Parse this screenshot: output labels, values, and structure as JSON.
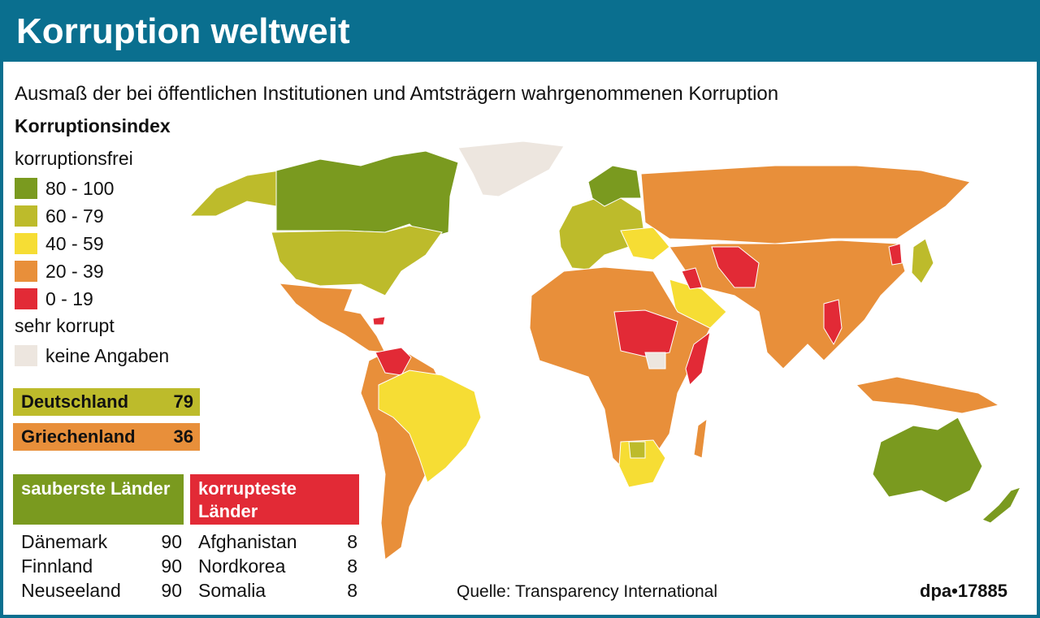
{
  "header": {
    "title": "Korruption weltweit",
    "subtitle": "Ausmaß der bei öffentlichen Institutionen und Amtsträgern wahrgenommenen Korruption",
    "index_label": "Korruptionsindex"
  },
  "legend": {
    "top_label": "korruptionsfrei",
    "items": [
      {
        "label": "80 - 100",
        "color": "#7a9a1f"
      },
      {
        "label": "60 - 79",
        "color": "#bdbb2b"
      },
      {
        "label": "40 - 59",
        "color": "#f6dd34"
      },
      {
        "label": "20 - 39",
        "color": "#e88f3a"
      },
      {
        "label": "0 - 19",
        "color": "#e22a36"
      }
    ],
    "bottom_label": "sehr korrupt",
    "no_data": {
      "label": "keine Angaben",
      "color": "#ede6df"
    }
  },
  "highlights": [
    {
      "country": "Deutschland",
      "value": 79,
      "color": "#bdbb2b"
    },
    {
      "country": "Griechenland",
      "value": 36,
      "color": "#e88f3a"
    }
  ],
  "cleanest": {
    "title": "sauberste Länder",
    "color": "#7a9a1f",
    "rows": [
      {
        "country": "Dänemark",
        "value": 90
      },
      {
        "country": "Finnland",
        "value": 90
      },
      {
        "country": "Neuseeland",
        "value": 90
      }
    ]
  },
  "most_corrupt": {
    "title": "korrupteste Länder",
    "color": "#e22a36",
    "rows": [
      {
        "country": "Afghanistan",
        "value": 8
      },
      {
        "country": "Nordkorea",
        "value": 8
      },
      {
        "country": "Somalia",
        "value": 8
      }
    ]
  },
  "source": "Quelle: Transparency International",
  "credit": "dpa•17885"
}
